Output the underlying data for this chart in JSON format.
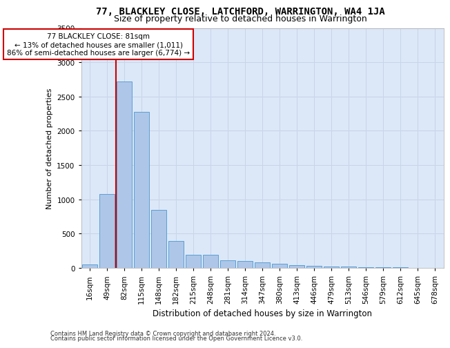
{
  "title1": "77, BLACKLEY CLOSE, LATCHFORD, WARRINGTON, WA4 1JA",
  "title2": "Size of property relative to detached houses in Warrington",
  "xlabel": "Distribution of detached houses by size in Warrington",
  "ylabel": "Number of detached properties",
  "footnote1": "Contains HM Land Registry data © Crown copyright and database right 2024.",
  "footnote2": "Contains public sector information licensed under the Open Government Licence v3.0.",
  "annotation_line1": "77 BLACKLEY CLOSE: 81sqm",
  "annotation_line2": "← 13% of detached houses are smaller (1,011)",
  "annotation_line3": "86% of semi-detached houses are larger (6,774) →",
  "bar_labels": [
    "16sqm",
    "49sqm",
    "82sqm",
    "115sqm",
    "148sqm",
    "182sqm",
    "215sqm",
    "248sqm",
    "281sqm",
    "314sqm",
    "347sqm",
    "380sqm",
    "413sqm",
    "446sqm",
    "479sqm",
    "513sqm",
    "546sqm",
    "579sqm",
    "612sqm",
    "645sqm",
    "678sqm"
  ],
  "bar_values": [
    50,
    1080,
    2720,
    2280,
    850,
    390,
    195,
    190,
    115,
    100,
    85,
    65,
    40,
    30,
    25,
    20,
    15,
    10,
    8,
    5,
    5
  ],
  "bar_color": "#aec6e8",
  "bar_edge_color": "#5a9fd4",
  "vline_color": "#cc0000",
  "annotation_box_edgecolor": "#cc0000",
  "ylim": [
    0,
    3500
  ],
  "yticks": [
    0,
    500,
    1000,
    1500,
    2000,
    2500,
    3000,
    3500
  ],
  "grid_color": "#c8d4e8",
  "plot_bg_color": "#dce8f8",
  "title1_fontsize": 10,
  "title2_fontsize": 9,
  "xlabel_fontsize": 8.5,
  "ylabel_fontsize": 8,
  "tick_fontsize": 7.5,
  "annotation_fontsize": 7.5,
  "footnote_fontsize": 6
}
